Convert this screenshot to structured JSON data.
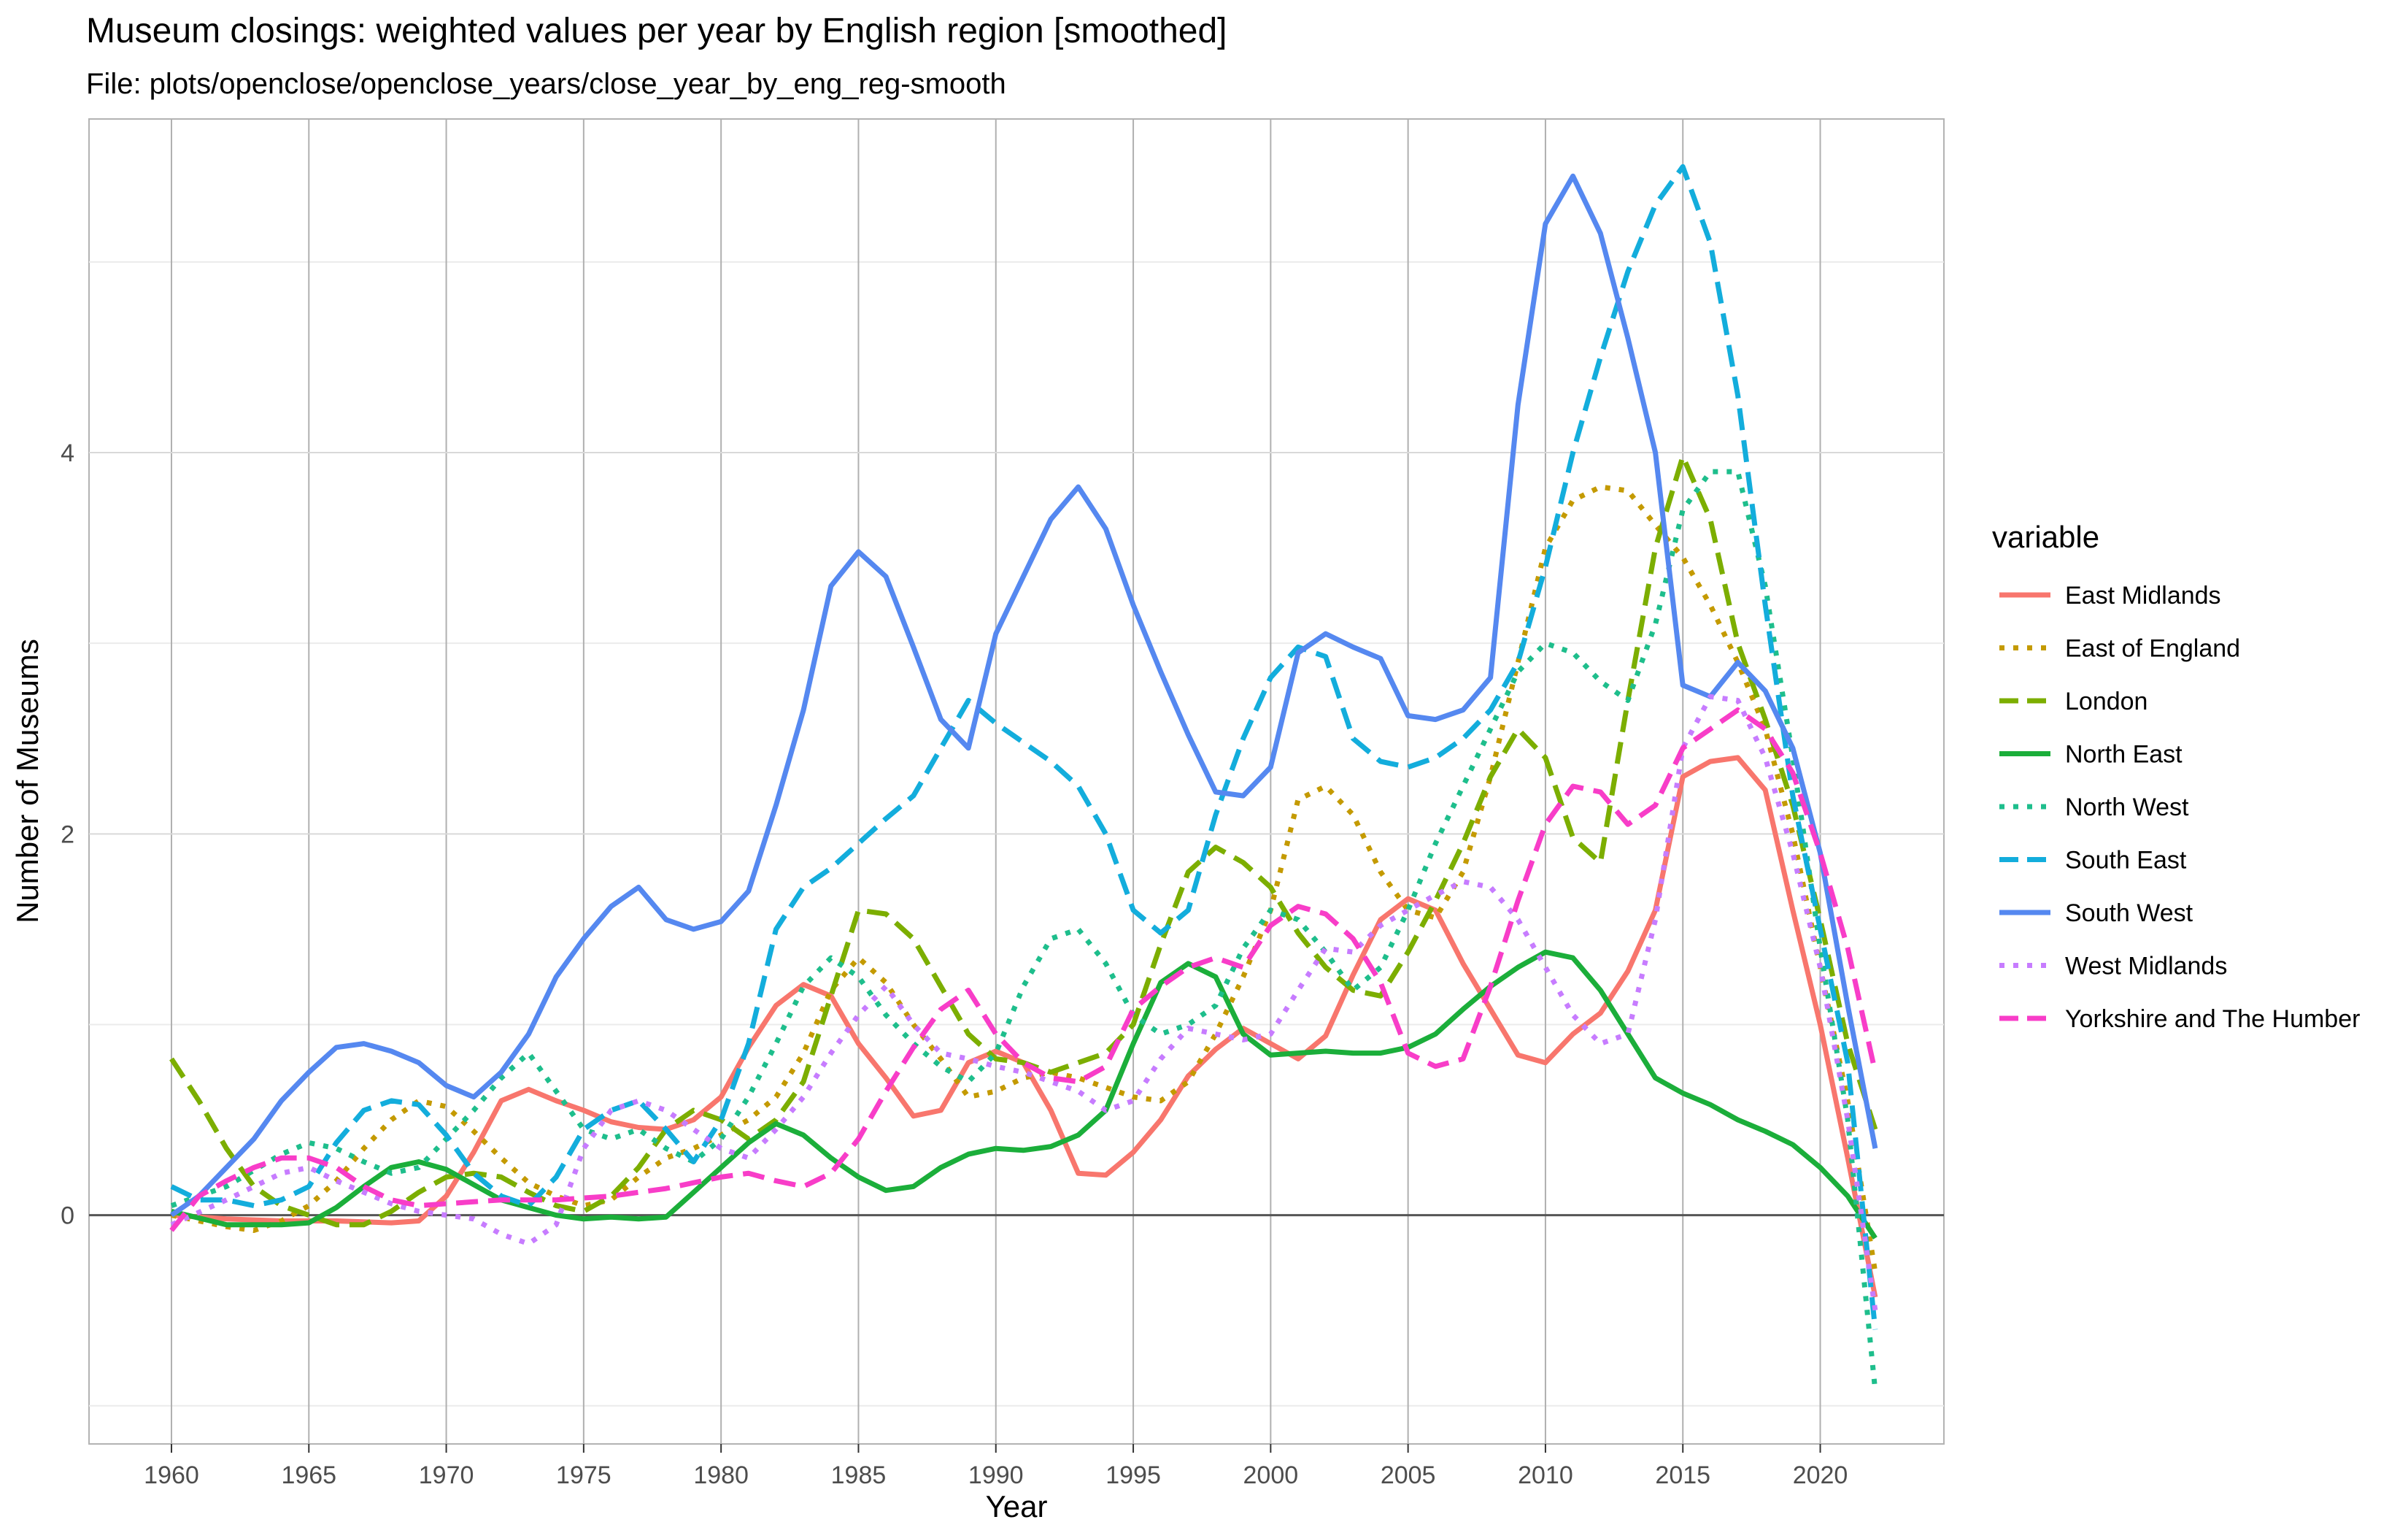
{
  "chart_data": {
    "type": "line",
    "title": "Museum closings: weighted values per year by English region [smoothed]",
    "subtitle": "File: plots/openclose/openclose_years/close_year_by_eng_reg-smooth",
    "xlabel": "Year",
    "ylabel": "Number of Museums",
    "xlim": [
      1957,
      2024.5
    ],
    "ylim": [
      -1.2,
      5.75
    ],
    "x_ticks": [
      1960,
      1965,
      1970,
      1975,
      1980,
      1985,
      1990,
      1995,
      2000,
      2005,
      2010,
      2015,
      2020
    ],
    "y_ticks": [
      0,
      2,
      4
    ],
    "grid": true,
    "legend_title": "variable",
    "legend_position": "right",
    "series": [
      {
        "name": "East Midlands",
        "color": "#F8766D",
        "dash": "solid",
        "x": [
          1960,
          1962,
          1964,
          1966,
          1968,
          1969,
          1970,
          1971,
          1972,
          1973,
          1974,
          1975,
          1976,
          1977,
          1978,
          1979,
          1980,
          1981,
          1982,
          1983,
          1984,
          1985,
          1986,
          1987,
          1988,
          1989,
          1990,
          1991,
          1992,
          1993,
          1994,
          1995,
          1996,
          1997,
          1998,
          1999,
          2000,
          2001,
          2002,
          2003,
          2004,
          2005,
          2006,
          2007,
          2008,
          2009,
          2010,
          2011,
          2012,
          2013,
          2014,
          2015,
          2016,
          2017,
          2018,
          2019,
          2020,
          2021,
          2022
        ],
        "y": [
          0.0,
          -0.02,
          -0.03,
          -0.03,
          -0.04,
          -0.03,
          0.1,
          0.33,
          0.6,
          0.66,
          0.6,
          0.55,
          0.49,
          0.46,
          0.45,
          0.5,
          0.62,
          0.88,
          1.1,
          1.21,
          1.15,
          0.9,
          0.72,
          0.52,
          0.55,
          0.8,
          0.86,
          0.8,
          0.55,
          0.22,
          0.21,
          0.33,
          0.5,
          0.73,
          0.87,
          0.98,
          0.9,
          0.82,
          0.94,
          1.26,
          1.55,
          1.66,
          1.6,
          1.32,
          1.08,
          0.84,
          0.8,
          0.95,
          1.06,
          1.28,
          1.6,
          2.3,
          2.38,
          2.4,
          2.23,
          1.6,
          1.0,
          0.3,
          -0.43
        ]
      },
      {
        "name": "East of England",
        "color": "#C49A00",
        "dash": "dotted",
        "x": [
          1960,
          1962,
          1963,
          1964,
          1965,
          1966,
          1967,
          1968,
          1969,
          1970,
          1971,
          1972,
          1973,
          1974,
          1975,
          1976,
          1977,
          1978,
          1979,
          1980,
          1981,
          1982,
          1983,
          1984,
          1985,
          1986,
          1987,
          1988,
          1989,
          1990,
          1991,
          1992,
          1993,
          1994,
          1995,
          1996,
          1997,
          1998,
          1999,
          2000,
          2001,
          2002,
          2003,
          2004,
          2005,
          2006,
          2007,
          2008,
          2009,
          2010,
          2011,
          2012,
          2013,
          2014,
          2015,
          2016,
          2017,
          2018,
          2019,
          2020,
          2021,
          2022
        ],
        "y": [
          0.0,
          -0.06,
          -0.08,
          -0.03,
          0.05,
          0.18,
          0.35,
          0.5,
          0.6,
          0.57,
          0.44,
          0.3,
          0.17,
          0.1,
          0.05,
          0.08,
          0.2,
          0.3,
          0.35,
          0.42,
          0.5,
          0.62,
          0.85,
          1.18,
          1.35,
          1.22,
          1.0,
          0.82,
          0.62,
          0.65,
          0.72,
          0.75,
          0.72,
          0.67,
          0.62,
          0.6,
          0.7,
          0.95,
          1.25,
          1.6,
          2.18,
          2.25,
          2.1,
          1.8,
          1.6,
          1.56,
          1.8,
          2.3,
          2.9,
          3.5,
          3.75,
          3.82,
          3.8,
          3.62,
          3.45,
          3.2,
          2.9,
          2.55,
          2.0,
          1.3,
          0.6,
          -0.3
        ]
      },
      {
        "name": "London",
        "color": "#53B400",
        "stroke": "#7CAE00",
        "dash": "dashed",
        "x": [
          1960,
          1961,
          1962,
          1963,
          1964,
          1965,
          1966,
          1967,
          1968,
          1969,
          1970,
          1971,
          1972,
          1973,
          1974,
          1975,
          1976,
          1977,
          1978,
          1979,
          1980,
          1981,
          1982,
          1983,
          1984,
          1985,
          1986,
          1987,
          1988,
          1989,
          1990,
          1991,
          1992,
          1993,
          1994,
          1995,
          1996,
          1997,
          1998,
          1999,
          2000,
          2001,
          2002,
          2003,
          2004,
          2005,
          2006,
          2007,
          2008,
          2009,
          2010,
          2011,
          2012,
          2013,
          2014,
          2015,
          2016,
          2017,
          2018,
          2019,
          2020,
          2021,
          2022
        ],
        "y": [
          0.82,
          0.6,
          0.35,
          0.15,
          0.05,
          0.0,
          -0.05,
          -0.05,
          0.02,
          0.12,
          0.2,
          0.22,
          0.2,
          0.12,
          0.05,
          0.02,
          0.1,
          0.25,
          0.45,
          0.55,
          0.5,
          0.4,
          0.5,
          0.7,
          1.15,
          1.6,
          1.58,
          1.45,
          1.2,
          0.95,
          0.82,
          0.8,
          0.75,
          0.8,
          0.85,
          1.0,
          1.42,
          1.8,
          1.93,
          1.85,
          1.72,
          1.48,
          1.3,
          1.18,
          1.15,
          1.38,
          1.65,
          1.95,
          2.3,
          2.55,
          2.4,
          1.98,
          1.85,
          2.7,
          3.5,
          3.98,
          3.65,
          3.0,
          2.6,
          2.15,
          1.55,
          0.9,
          0.45
        ]
      },
      {
        "name": "North East",
        "color": "#00C094",
        "stroke": "#1BAE3A",
        "dash": "solid",
        "x": [
          1960,
          1962,
          1964,
          1965,
          1966,
          1967,
          1968,
          1969,
          1970,
          1971,
          1972,
          1973,
          1974,
          1975,
          1976,
          1977,
          1978,
          1979,
          1980,
          1981,
          1982,
          1983,
          1984,
          1985,
          1986,
          1987,
          1988,
          1989,
          1990,
          1991,
          1992,
          1993,
          1994,
          1995,
          1996,
          1997,
          1998,
          1999,
          2000,
          2001,
          2002,
          2003,
          2004,
          2005,
          2006,
          2007,
          2008,
          2009,
          2010,
          2011,
          2012,
          2013,
          2014,
          2015,
          2016,
          2017,
          2018,
          2019,
          2020,
          2021,
          2022
        ],
        "y": [
          0.02,
          -0.05,
          -0.05,
          -0.04,
          0.04,
          0.15,
          0.25,
          0.28,
          0.24,
          0.16,
          0.08,
          0.04,
          0.0,
          -0.02,
          -0.01,
          -0.02,
          -0.01,
          0.12,
          0.25,
          0.38,
          0.48,
          0.42,
          0.3,
          0.2,
          0.13,
          0.15,
          0.25,
          0.32,
          0.35,
          0.34,
          0.36,
          0.42,
          0.55,
          0.9,
          1.22,
          1.32,
          1.25,
          0.95,
          0.84,
          0.85,
          0.86,
          0.85,
          0.85,
          0.88,
          0.95,
          1.08,
          1.2,
          1.3,
          1.38,
          1.35,
          1.18,
          0.95,
          0.72,
          0.64,
          0.58,
          0.5,
          0.44,
          0.37,
          0.25,
          0.1,
          -0.12
        ]
      },
      {
        "name": "North West",
        "color": "#00B6EB",
        "stroke": "#1EBE8C",
        "dash": "dotted",
        "x": [
          1960,
          1962,
          1964,
          1965,
          1966,
          1967,
          1968,
          1969,
          1970,
          1971,
          1972,
          1973,
          1974,
          1975,
          1976,
          1977,
          1978,
          1979,
          1980,
          1981,
          1982,
          1983,
          1984,
          1985,
          1986,
          1987,
          1988,
          1989,
          1990,
          1991,
          1992,
          1993,
          1994,
          1995,
          1996,
          1997,
          1998,
          1999,
          2000,
          2001,
          2002,
          2003,
          2004,
          2005,
          2006,
          2007,
          2008,
          2009,
          2010,
          2011,
          2012,
          2013,
          2014,
          2015,
          2016,
          2017,
          2018,
          2019,
          2020,
          2021,
          2022
        ],
        "y": [
          0.05,
          0.15,
          0.32,
          0.38,
          0.35,
          0.28,
          0.22,
          0.25,
          0.4,
          0.55,
          0.72,
          0.85,
          0.65,
          0.45,
          0.4,
          0.45,
          0.35,
          0.28,
          0.4,
          0.62,
          0.9,
          1.2,
          1.35,
          1.25,
          1.05,
          0.9,
          0.78,
          0.7,
          0.85,
          1.2,
          1.45,
          1.5,
          1.32,
          1.05,
          0.95,
          1.0,
          1.1,
          1.4,
          1.6,
          1.55,
          1.38,
          1.18,
          1.3,
          1.6,
          1.95,
          2.25,
          2.55,
          2.85,
          3.0,
          2.95,
          2.8,
          2.7,
          3.1,
          3.7,
          3.9,
          3.9,
          3.3,
          2.4,
          1.4,
          0.5,
          -0.92
        ]
      },
      {
        "name": "South East",
        "color": "#00A9FF",
        "stroke": "#13ADDC",
        "dash": "dashed",
        "x": [
          1960,
          1961,
          1962,
          1963,
          1964,
          1965,
          1966,
          1967,
          1968,
          1969,
          1970,
          1971,
          1972,
          1973,
          1974,
          1975,
          1976,
          1977,
          1978,
          1979,
          1980,
          1981,
          1982,
          1983,
          1984,
          1985,
          1986,
          1987,
          1988,
          1989,
          1990,
          1991,
          1992,
          1993,
          1994,
          1995,
          1996,
          1997,
          1998,
          1999,
          2000,
          2001,
          2002,
          2003,
          2004,
          2005,
          2006,
          2007,
          2008,
          2009,
          2010,
          2011,
          2012,
          2013,
          2014,
          2015,
          2016,
          2017,
          2018,
          2019,
          2020,
          2021,
          2022
        ],
        "y": [
          0.15,
          0.08,
          0.08,
          0.05,
          0.08,
          0.15,
          0.38,
          0.55,
          0.6,
          0.58,
          0.42,
          0.22,
          0.1,
          0.05,
          0.2,
          0.45,
          0.55,
          0.6,
          0.45,
          0.28,
          0.5,
          0.9,
          1.5,
          1.72,
          1.82,
          1.95,
          2.08,
          2.2,
          2.45,
          2.7,
          2.58,
          2.48,
          2.38,
          2.25,
          2.0,
          1.6,
          1.48,
          1.6,
          2.1,
          2.5,
          2.82,
          2.98,
          2.93,
          2.5,
          2.38,
          2.35,
          2.4,
          2.5,
          2.65,
          2.9,
          3.4,
          4.0,
          4.5,
          4.95,
          5.3,
          5.5,
          5.1,
          4.3,
          3.2,
          2.2,
          1.5,
          0.8,
          -0.6
        ]
      },
      {
        "name": "South West",
        "color": "#619CFF",
        "stroke": "#5588F0",
        "dash": "solid",
        "x": [
          1960,
          1961,
          1962,
          1963,
          1964,
          1965,
          1966,
          1967,
          1968,
          1969,
          1970,
          1971,
          1972,
          1973,
          1974,
          1975,
          1976,
          1977,
          1978,
          1979,
          1980,
          1981,
          1982,
          1983,
          1984,
          1985,
          1986,
          1987,
          1988,
          1989,
          1990,
          1991,
          1992,
          1993,
          1994,
          1995,
          1996,
          1997,
          1998,
          1999,
          2000,
          2001,
          2002,
          2003,
          2004,
          2005,
          2006,
          2007,
          2008,
          2009,
          2010,
          2011,
          2012,
          2013,
          2014,
          2015,
          2016,
          2017,
          2018,
          2019,
          2020,
          2021,
          2022
        ],
        "y": [
          0.0,
          0.1,
          0.25,
          0.4,
          0.6,
          0.75,
          0.88,
          0.9,
          0.86,
          0.8,
          0.68,
          0.62,
          0.75,
          0.95,
          1.25,
          1.45,
          1.62,
          1.72,
          1.55,
          1.5,
          1.54,
          1.7,
          2.15,
          2.65,
          3.3,
          3.48,
          3.35,
          2.98,
          2.6,
          2.45,
          3.05,
          3.35,
          3.65,
          3.82,
          3.6,
          3.2,
          2.85,
          2.52,
          2.22,
          2.2,
          2.35,
          2.95,
          3.05,
          2.98,
          2.92,
          2.62,
          2.6,
          2.65,
          2.82,
          4.25,
          5.2,
          5.45,
          5.15,
          4.6,
          4.0,
          2.78,
          2.72,
          2.9,
          2.75,
          2.45,
          1.9,
          1.1,
          0.35
        ]
      },
      {
        "name": "West Midlands",
        "color": "#DB72FB",
        "stroke": "#C77CFF",
        "dash": "dotted",
        "x": [
          1960,
          1962,
          1963,
          1964,
          1965,
          1966,
          1967,
          1968,
          1969,
          1970,
          1971,
          1972,
          1973,
          1974,
          1975,
          1976,
          1977,
          1978,
          1979,
          1980,
          1981,
          1982,
          1983,
          1984,
          1985,
          1986,
          1987,
          1988,
          1989,
          1990,
          1991,
          1992,
          1993,
          1994,
          1995,
          1996,
          1997,
          1998,
          1999,
          2000,
          2001,
          2002,
          2003,
          2004,
          2005,
          2006,
          2007,
          2008,
          2009,
          2010,
          2011,
          2012,
          2013,
          2014,
          2015,
          2016,
          2017,
          2018,
          2019,
          2020,
          2021,
          2022
        ],
        "y": [
          -0.05,
          0.08,
          0.15,
          0.22,
          0.25,
          0.18,
          0.12,
          0.06,
          0.02,
          0.0,
          -0.02,
          -0.1,
          -0.15,
          -0.05,
          0.35,
          0.55,
          0.6,
          0.55,
          0.45,
          0.35,
          0.3,
          0.45,
          0.62,
          0.85,
          1.05,
          1.2,
          1.0,
          0.85,
          0.82,
          0.78,
          0.75,
          0.7,
          0.65,
          0.55,
          0.6,
          0.82,
          0.98,
          0.95,
          0.92,
          0.95,
          1.18,
          1.4,
          1.38,
          1.52,
          1.6,
          1.68,
          1.75,
          1.72,
          1.55,
          1.3,
          1.05,
          0.9,
          0.95,
          1.55,
          2.45,
          2.72,
          2.7,
          2.4,
          1.9,
          1.3,
          0.5,
          -0.5
        ]
      },
      {
        "name": "Yorkshire and The Humber",
        "color": "#FF61C3",
        "stroke": "#F83DC8",
        "dash": "dashed",
        "x": [
          1960,
          1961,
          1962,
          1963,
          1964,
          1965,
          1966,
          1967,
          1968,
          1969,
          1970,
          1971,
          1972,
          1973,
          1974,
          1975,
          1976,
          1977,
          1978,
          1979,
          1980,
          1981,
          1982,
          1983,
          1984,
          1985,
          1986,
          1987,
          1988,
          1989,
          1990,
          1991,
          1992,
          1993,
          1994,
          1995,
          1996,
          1997,
          1998,
          1999,
          2000,
          2001,
          2002,
          2003,
          2004,
          2005,
          2006,
          2007,
          2008,
          2009,
          2010,
          2011,
          2012,
          2013,
          2014,
          2015,
          2016,
          2017,
          2018,
          2019,
          2020,
          2021,
          2022
        ],
        "y": [
          -0.08,
          0.1,
          0.18,
          0.25,
          0.3,
          0.3,
          0.25,
          0.15,
          0.08,
          0.05,
          0.06,
          0.07,
          0.08,
          0.08,
          0.08,
          0.09,
          0.1,
          0.12,
          0.14,
          0.17,
          0.2,
          0.22,
          0.18,
          0.15,
          0.22,
          0.4,
          0.65,
          0.88,
          1.08,
          1.18,
          0.95,
          0.8,
          0.72,
          0.7,
          0.78,
          1.08,
          1.2,
          1.3,
          1.35,
          1.3,
          1.52,
          1.62,
          1.58,
          1.45,
          1.22,
          0.85,
          0.78,
          0.82,
          1.2,
          1.65,
          2.05,
          2.25,
          2.22,
          2.05,
          2.15,
          2.45,
          2.55,
          2.65,
          2.55,
          2.32,
          1.9,
          1.4,
          0.75
        ]
      }
    ]
  }
}
